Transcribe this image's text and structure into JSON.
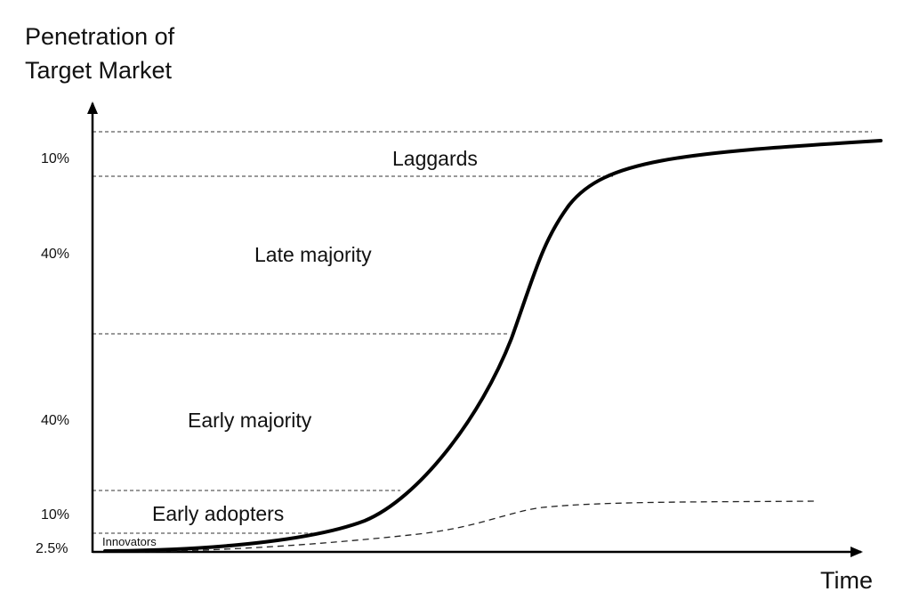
{
  "y_axis_label": [
    "Penetration of",
    "Target Market"
  ],
  "x_axis_label": "Time",
  "segments": [
    {
      "name": "Innovators",
      "share": "2.5%"
    },
    {
      "name": "Early adopters",
      "share": "10%"
    },
    {
      "name": "Early majority",
      "share": "40%"
    },
    {
      "name": "Late majority",
      "share": "40%"
    },
    {
      "name": "Laggards",
      "share": "10%"
    }
  ],
  "colors": {
    "curve": "#000000",
    "axis": "#000000",
    "boundary": "#333333"
  }
}
